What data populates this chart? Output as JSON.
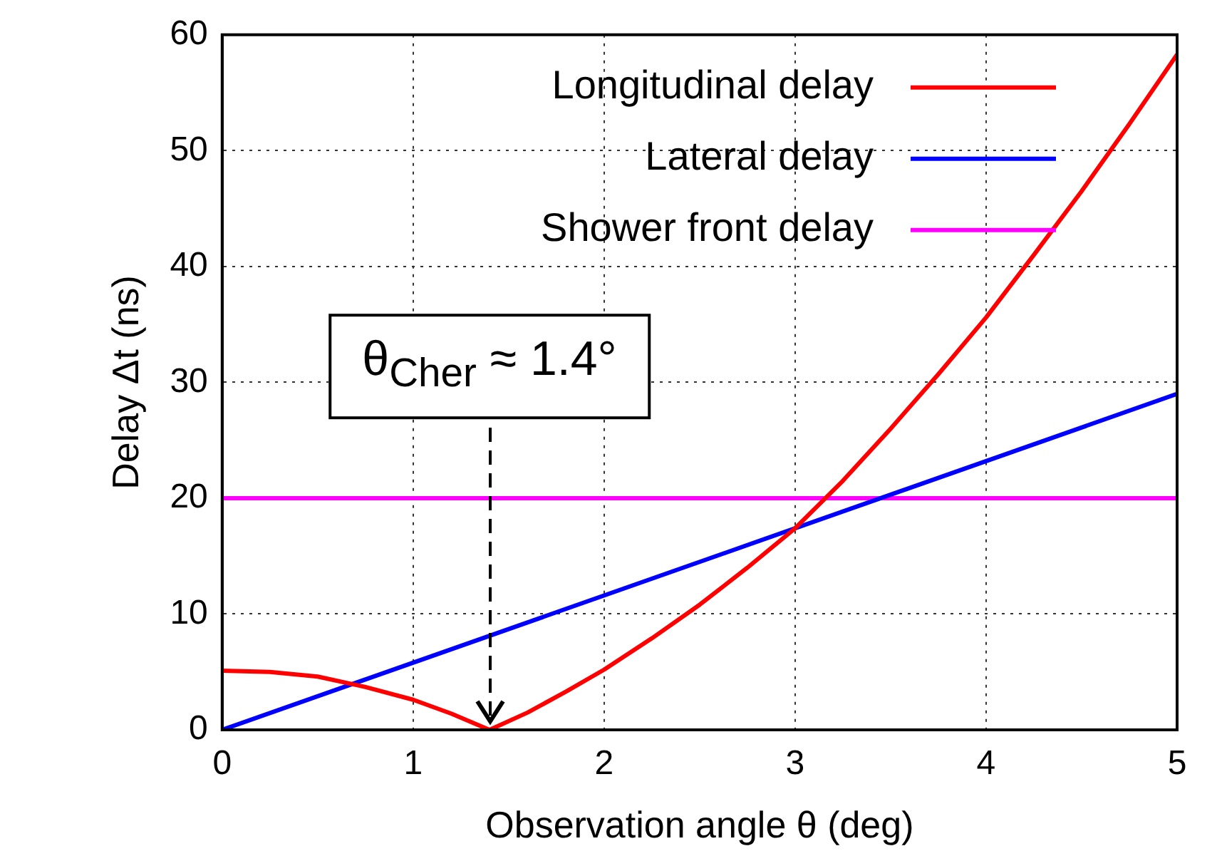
{
  "chart_data": {
    "type": "line",
    "xlabel": "Observation angle θ (deg)",
    "ylabel": "Delay Δt (ns)",
    "xlim": [
      0,
      5
    ],
    "ylim": [
      0,
      60
    ],
    "xticks": [
      0,
      1,
      2,
      3,
      4,
      5
    ],
    "yticks": [
      0,
      10,
      20,
      30,
      40,
      50,
      60
    ],
    "grid": true,
    "legend": "top right",
    "line_style": "solid",
    "marker": "none",
    "annotations": [
      {
        "text": "θ$_{Cher}$ ≈ 1.4°",
        "x": 1.4,
        "y": 0
      }
    ],
    "series": [
      {
        "name": "Longitudinal delay",
        "color": "#ff0000",
        "x": [
          0,
          0.25,
          0.5,
          0.75,
          1,
          1.2,
          1.4,
          1.6,
          1.8,
          2,
          2.25,
          2.5,
          2.75,
          3,
          3.25,
          3.5,
          3.75,
          4,
          4.25,
          4.5,
          4.75,
          5
        ],
        "values": [
          5.1,
          5,
          4.6,
          3.7,
          2.6,
          1.4,
          0,
          1.5,
          3.3,
          5.2,
          7.9,
          10.8,
          14,
          17.4,
          21.5,
          26,
          30.7,
          35.6,
          41,
          46.5,
          52.3,
          58.3
        ]
      },
      {
        "name": "Lateral delay",
        "color": "#0000ff",
        "x": [
          0,
          5
        ],
        "values": [
          0,
          29
        ]
      },
      {
        "name": "Shower front delay",
        "color": "#ff00ff",
        "x": [
          0,
          5
        ],
        "values": [
          20,
          20
        ]
      }
    ]
  }
}
